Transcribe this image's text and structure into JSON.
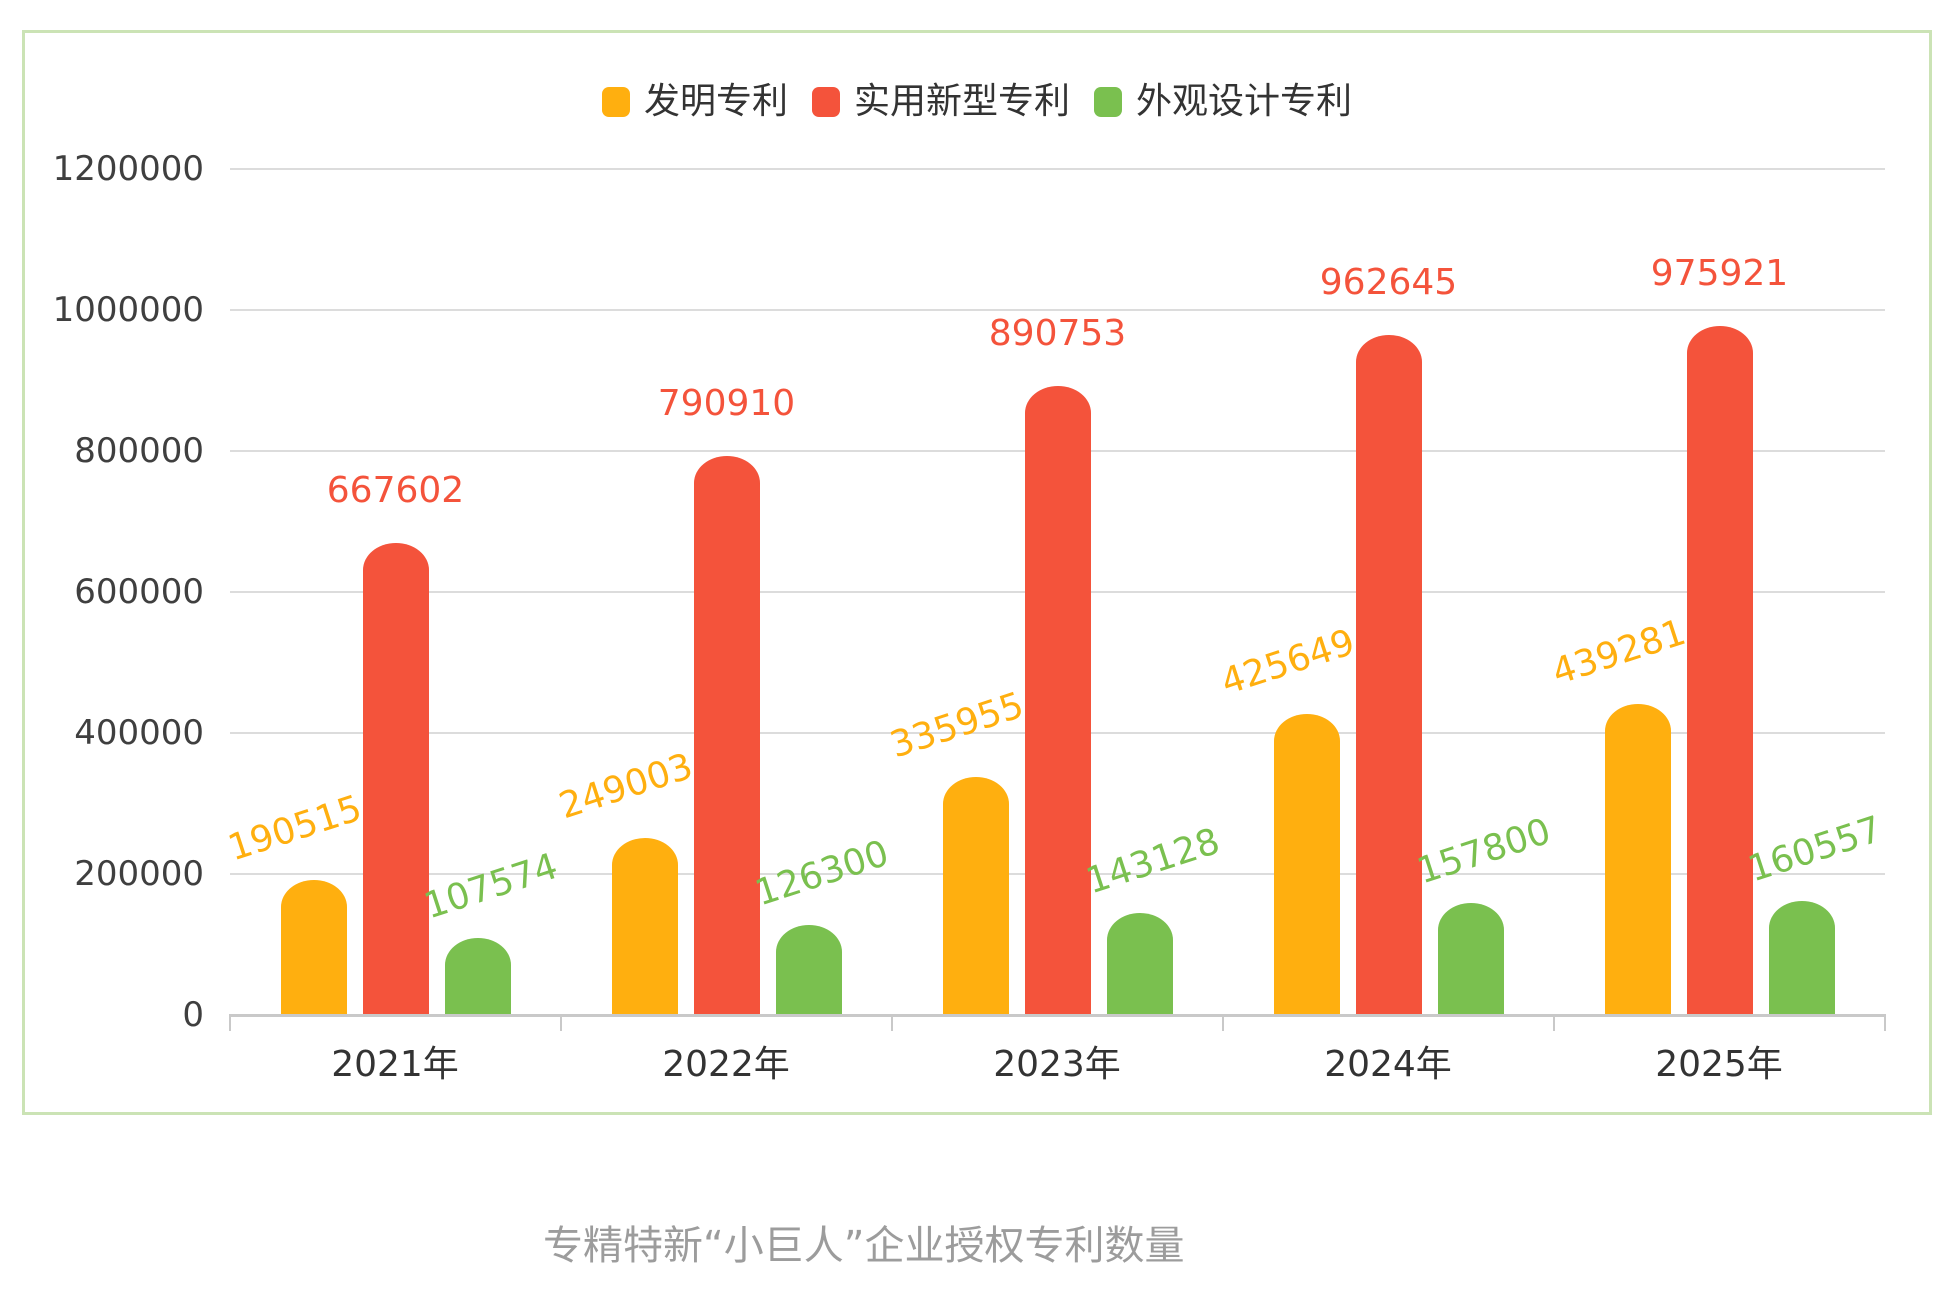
{
  "chart_data": {
    "type": "bar",
    "title": "专精特新“小巨人”企业授权专利数量",
    "categories": [
      "2021年",
      "2022年",
      "2023年",
      "2024年",
      "2025年"
    ],
    "series": [
      {
        "name": "发明专利",
        "color": "#FFAF0F",
        "values": [
          190515,
          249003,
          335955,
          425649,
          439281
        ],
        "label_rotate": -18
      },
      {
        "name": "实用新型专利",
        "color": "#F4533B",
        "values": [
          667602,
          790910,
          890753,
          962645,
          975921
        ],
        "label_rotate": 0
      },
      {
        "name": "外观设计专利",
        "color": "#7AC04F",
        "values": [
          107574,
          126300,
          143128,
          157800,
          160557
        ],
        "label_rotate": -18
      }
    ],
    "ylim": [
      0,
      1200000
    ],
    "yticks": [
      0,
      200000,
      400000,
      600000,
      800000,
      1000000,
      1200000
    ],
    "grid": true,
    "legend_position": "top",
    "xlabel": "",
    "ylabel": ""
  },
  "style": {
    "card_border_color": "#cbe3b5",
    "gridline_color": "#dcdcdc",
    "axis_color": "#c9c9c9",
    "axis_text_color": "#3f3f3f",
    "title_color": "#9c9c9c"
  }
}
